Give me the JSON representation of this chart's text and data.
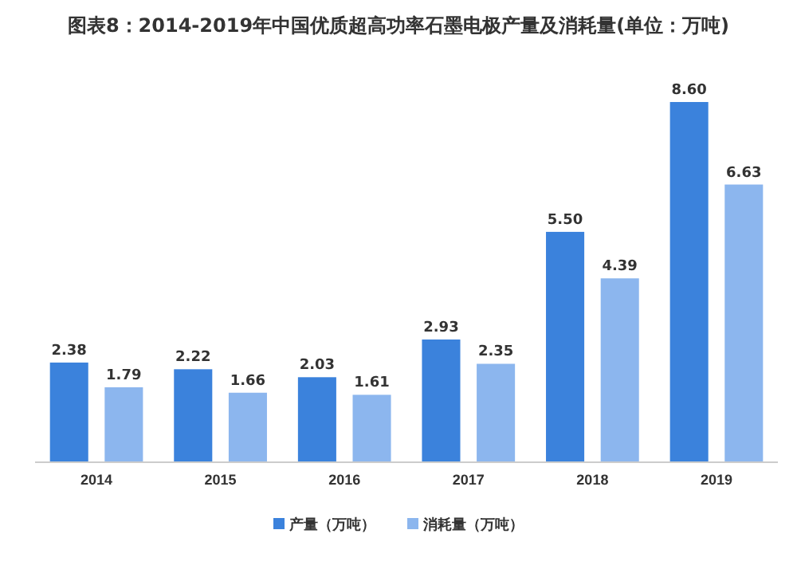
{
  "chart_data": {
    "type": "bar",
    "title": "图表8：2014-2019年中国优质超高功率石墨电极产量及消耗量(单位：万吨)",
    "categories": [
      "2014",
      "2015",
      "2016",
      "2017",
      "2018",
      "2019"
    ],
    "series": [
      {
        "name": "产量（万吨）",
        "color": "#3b82dc",
        "values": [
          2.38,
          2.22,
          2.03,
          2.93,
          5.5,
          8.6
        ],
        "value_labels": [
          "2.38",
          "2.22",
          "2.03",
          "2.93",
          "5.50",
          "8.60"
        ]
      },
      {
        "name": "消耗量（万吨）",
        "color": "#8cb6ee",
        "values": [
          1.79,
          1.66,
          1.61,
          2.35,
          4.39,
          6.63
        ],
        "value_labels": [
          "1.79",
          "1.66",
          "1.61",
          "2.35",
          "4.39",
          "6.63"
        ]
      }
    ],
    "legend": "bottom"
  }
}
